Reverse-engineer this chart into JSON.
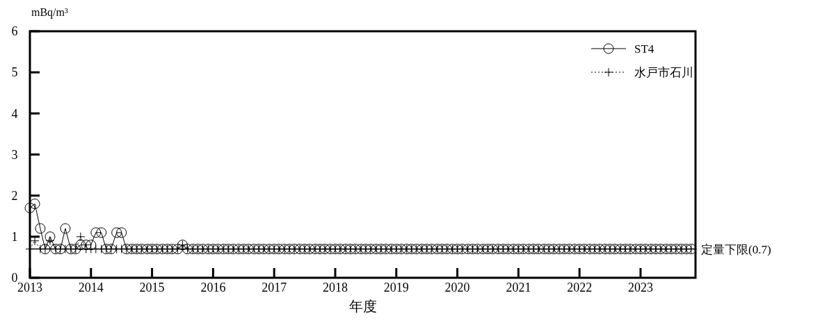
{
  "chart_data": {
    "type": "line",
    "xlabel": "年度",
    "ylabel": "mBq/m³",
    "xlim": [
      2013,
      2023.9
    ],
    "xticks": [
      2013,
      2014,
      2015,
      2016,
      2017,
      2018,
      2019,
      2020,
      2021,
      2022,
      2023
    ],
    "ylim": [
      0,
      6
    ],
    "yticks": [
      0,
      1,
      2,
      3,
      4,
      5,
      6
    ],
    "legend": "top right",
    "grid": false,
    "x": [
      2013.0,
      2013.08,
      2013.17,
      2013.25,
      2013.33,
      2013.42,
      2013.5,
      2013.58,
      2013.67,
      2013.75,
      2013.83,
      2013.92,
      2014.0,
      2014.08,
      2014.17,
      2014.25,
      2014.33,
      2014.42,
      2014.5,
      2014.58,
      2014.67,
      2014.75,
      2014.83,
      2014.92,
      2015.0,
      2015.08,
      2015.17,
      2015.25,
      2015.33,
      2015.42,
      2015.5,
      2015.58,
      2015.67,
      2015.75,
      2015.83,
      2015.92,
      2016.0,
      2016.08,
      2016.17,
      2016.25,
      2016.33,
      2016.42,
      2016.5,
      2016.58,
      2016.67,
      2016.75,
      2016.83,
      2016.92,
      2017.0,
      2017.08,
      2017.17,
      2017.25,
      2017.33,
      2017.42,
      2017.5,
      2017.58,
      2017.67,
      2017.75,
      2017.83,
      2017.92,
      2018.0,
      2018.08,
      2018.17,
      2018.25,
      2018.33,
      2018.42,
      2018.5,
      2018.58,
      2018.67,
      2018.75,
      2018.83,
      2018.92,
      2019.0,
      2019.08,
      2019.17,
      2019.25,
      2019.33,
      2019.42,
      2019.5,
      2019.58,
      2019.67,
      2019.75,
      2019.83,
      2019.92,
      2020.0,
      2020.08,
      2020.17,
      2020.25,
      2020.33,
      2020.42,
      2020.5,
      2020.58,
      2020.67,
      2020.75,
      2020.83,
      2020.92,
      2021.0,
      2021.08,
      2021.17,
      2021.25,
      2021.33,
      2021.42,
      2021.5,
      2021.58,
      2021.67,
      2021.75,
      2021.83,
      2021.92,
      2022.0,
      2022.08,
      2022.17,
      2022.25,
      2022.33,
      2022.42,
      2022.5,
      2022.58,
      2022.67,
      2022.75,
      2022.83,
      2022.92,
      2023.0,
      2023.08,
      2023.17,
      2023.25,
      2023.33,
      2023.42,
      2023.5,
      2023.58,
      2023.67,
      2023.75,
      2023.83
    ],
    "series": [
      {
        "name": "ST4",
        "color": "#000000",
        "marker": "circle",
        "line_style": "solid",
        "values": [
          1.7,
          1.8,
          1.2,
          0.7,
          1.0,
          0.7,
          0.7,
          1.2,
          0.7,
          0.7,
          0.8,
          0.8,
          0.8,
          1.1,
          1.1,
          0.7,
          0.7,
          1.1,
          1.1,
          0.7,
          0.7,
          0.7,
          0.7,
          0.7,
          0.7,
          0.7,
          0.7,
          0.7,
          0.7,
          0.7,
          0.8,
          0.7,
          0.7,
          0.7,
          0.7,
          0.7,
          0.7,
          0.7,
          0.7,
          0.7,
          0.7,
          0.7,
          0.7,
          0.7,
          0.7,
          0.7,
          0.7,
          0.7,
          0.7,
          0.7,
          0.7,
          0.7,
          0.7,
          0.7,
          0.7,
          0.7,
          0.7,
          0.7,
          0.7,
          0.7,
          0.7,
          0.7,
          0.7,
          0.7,
          0.7,
          0.7,
          0.7,
          0.7,
          0.7,
          0.7,
          0.7,
          0.7,
          0.7,
          0.7,
          0.7,
          0.7,
          0.7,
          0.7,
          0.7,
          0.7,
          0.7,
          0.7,
          0.7,
          0.7,
          0.7,
          0.7,
          0.7,
          0.7,
          0.7,
          0.7,
          0.7,
          0.7,
          0.7,
          0.7,
          0.7,
          0.7,
          0.7,
          0.7,
          0.7,
          0.7,
          0.7,
          0.7,
          0.7,
          0.7,
          0.7,
          0.7,
          0.7,
          0.7,
          0.7,
          0.7,
          0.7,
          0.7,
          0.7,
          0.7,
          0.7,
          0.7,
          0.7,
          0.7,
          0.7,
          0.7,
          0.7,
          0.7,
          0.7,
          0.7,
          0.7,
          0.7,
          0.7,
          0.7,
          0.7,
          0.7,
          0.7
        ]
      },
      {
        "name": "水戸市石川",
        "color": "#000000",
        "marker": "cross",
        "line_style": "dotted",
        "values": [
          0.7,
          0.9,
          0.7,
          0.7,
          0.9,
          0.7,
          0.7,
          0.7,
          0.7,
          0.7,
          1.0,
          0.7,
          0.7,
          0.7,
          0.7,
          0.7,
          0.7,
          0.7,
          0.7,
          0.7,
          0.7,
          0.7,
          0.7,
          0.7,
          0.7,
          0.7,
          0.7,
          0.7,
          0.7,
          0.7,
          0.8,
          0.7,
          0.7,
          0.7,
          0.7,
          0.7,
          0.7,
          0.7,
          0.7,
          0.7,
          0.7,
          0.7,
          0.7,
          0.7,
          0.7,
          0.7,
          0.7,
          0.7,
          0.7,
          0.7,
          0.7,
          0.7,
          0.7,
          0.7,
          0.7,
          0.7,
          0.7,
          0.7,
          0.7,
          0.7,
          0.7,
          0.7,
          0.7,
          0.7,
          0.7,
          0.7,
          0.7,
          0.7,
          0.7,
          0.7,
          0.7,
          0.7,
          0.7,
          0.7,
          0.7,
          0.7,
          0.7,
          0.7,
          0.7,
          0.7,
          0.7,
          0.7,
          0.7,
          0.7,
          0.7,
          0.7,
          0.7,
          0.7,
          0.7,
          0.7,
          0.7,
          0.7,
          0.7,
          0.7,
          0.7,
          0.7,
          0.7,
          0.7,
          0.7,
          0.7,
          0.7,
          0.7,
          0.7,
          0.7,
          0.7,
          0.7,
          0.7,
          0.7,
          0.7,
          0.7,
          0.7,
          0.7,
          0.7,
          0.7,
          0.7,
          0.7,
          0.7,
          0.7,
          0.7,
          0.7,
          0.7,
          0.7,
          0.7,
          0.7,
          0.7,
          0.7,
          0.7,
          0.7,
          0.7,
          0.7,
          0.7
        ]
      }
    ],
    "ref_lines": [
      {
        "axis": "y",
        "value": 0.7,
        "label": "定量下限(0.7)",
        "color": "#000000",
        "line_style": "solid"
      }
    ]
  }
}
